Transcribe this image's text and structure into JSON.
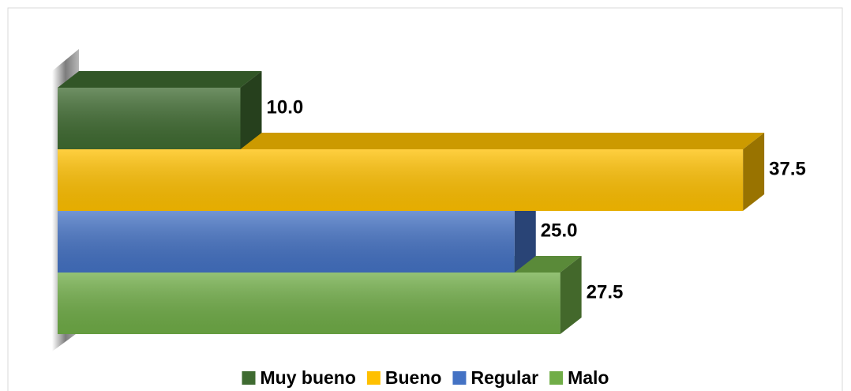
{
  "chart_data": {
    "type": "bar3d-horizontal",
    "series": [
      {
        "name": "Muy bueno",
        "color": "#3f6b31",
        "values": [
          10
        ],
        "value_labels": [
          "10.0"
        ]
      },
      {
        "name": "Bueno",
        "color": "#ffc000",
        "values": [
          37.5
        ],
        "value_labels": [
          "37.5"
        ]
      },
      {
        "name": "Regular",
        "color": "#4472c4",
        "values": [
          25
        ],
        "value_labels": [
          "25.0"
        ]
      },
      {
        "name": "Malo",
        "color": "#70ad47",
        "values": [
          27.5
        ],
        "value_labels": [
          "27.5"
        ]
      }
    ],
    "xlim": [
      0,
      40
    ],
    "legend": "bottom"
  }
}
